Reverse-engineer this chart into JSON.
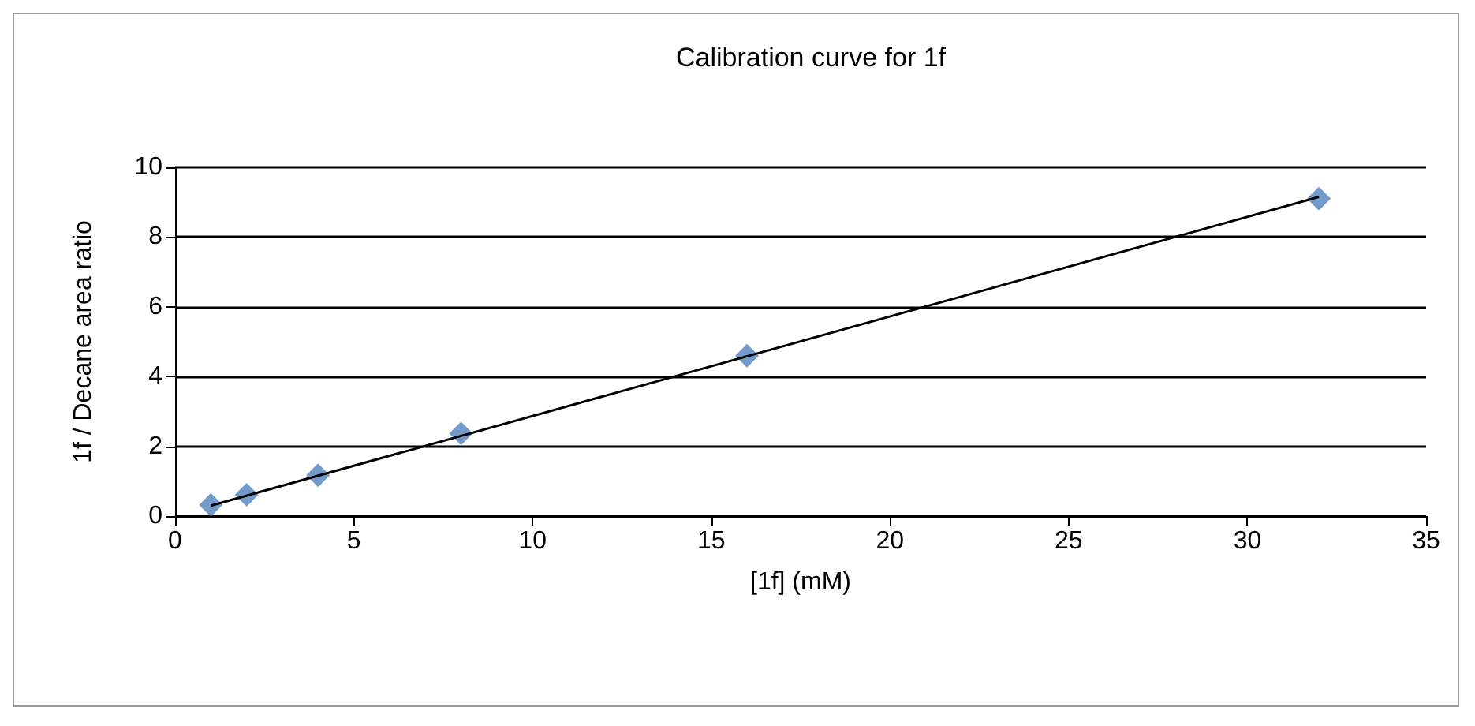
{
  "chart_data": {
    "type": "scatter",
    "title": "Calibration curve for 1f",
    "xlabel": "[1f] (mM)",
    "ylabel": "1f / Decane area ratio",
    "series": [
      {
        "color": "#4f81bd",
        "x": [
          1,
          2,
          4,
          8,
          16,
          32
        ],
        "values": [
          0.32,
          0.61,
          1.17,
          2.37,
          4.6,
          9.1
        ],
        "marker": "diamond"
      },
      {
        "type": "line",
        "color": "#000000",
        "x": [
          1,
          32
        ],
        "values": [
          0.3,
          9.15
        ],
        "marker": "none"
      }
    ],
    "xlim": [
      0,
      35
    ],
    "xticks": [
      0,
      5,
      10,
      15,
      20,
      25,
      30,
      35
    ],
    "ylim": [
      0,
      10
    ],
    "yticks": [
      0,
      2,
      4,
      6,
      8,
      10
    ],
    "grid": "y"
  }
}
